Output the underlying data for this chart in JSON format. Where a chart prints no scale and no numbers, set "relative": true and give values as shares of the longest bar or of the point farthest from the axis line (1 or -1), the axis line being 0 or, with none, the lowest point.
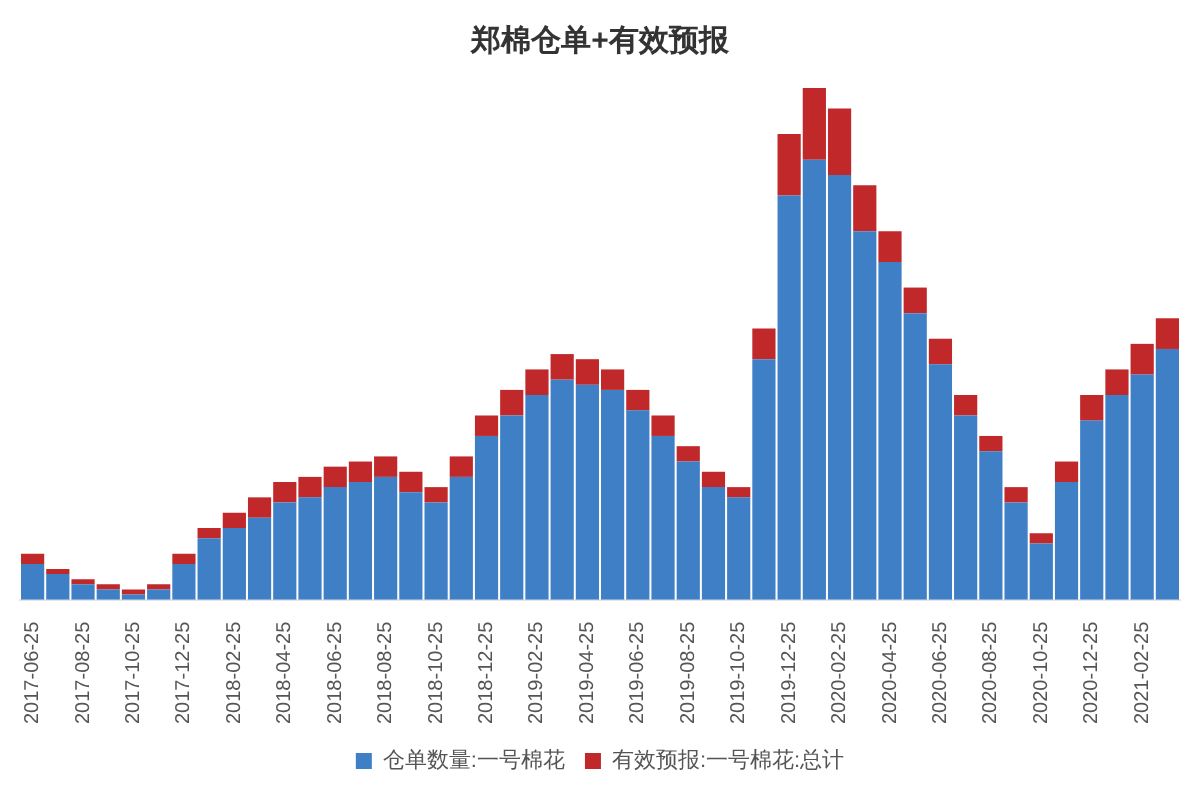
{
  "chart_data": {
    "type": "bar",
    "title": "郑棉仓单+有效预报",
    "stacked": true,
    "relative": true,
    "legend": "bottom",
    "grid": false,
    "categories": [
      "2017-06-25",
      null,
      "2017-08-25",
      null,
      "2017-10-25",
      null,
      "2017-12-25",
      null,
      "2018-02-25",
      null,
      "2018-04-25",
      null,
      "2018-06-25",
      null,
      "2018-08-25",
      null,
      "2018-10-25",
      null,
      "2018-12-25",
      null,
      "2019-02-25",
      null,
      "2019-04-25",
      null,
      "2019-06-25",
      null,
      "2019-08-25",
      null,
      "2019-10-25",
      null,
      "2019-12-25",
      null,
      "2020-02-25",
      null,
      "2020-04-25",
      null,
      "2020-06-25",
      null,
      "2020-08-25",
      null,
      "2020-10-25",
      null,
      "2020-12-25",
      null,
      "2021-02-25",
      null
    ],
    "series": [
      {
        "name": "仓单数量:一号棉花",
        "color": "#3f7fc6",
        "values": [
          0.07,
          0.05,
          0.03,
          0.02,
          0.01,
          0.02,
          0.07,
          0.12,
          0.14,
          0.16,
          0.19,
          0.2,
          0.22,
          0.23,
          0.24,
          0.21,
          0.19,
          0.24,
          0.32,
          0.36,
          0.4,
          0.43,
          0.42,
          0.41,
          0.37,
          0.32,
          0.27,
          0.22,
          0.2,
          0.47,
          0.79,
          0.86,
          0.83,
          0.72,
          0.66,
          0.56,
          0.46,
          0.36,
          0.29,
          0.19,
          0.11,
          0.23,
          0.35,
          0.4,
          0.44,
          0.49
        ]
      },
      {
        "name": "有效预报:一号棉花:总计",
        "color": "#c0282a",
        "values": [
          0.02,
          0.01,
          0.01,
          0.01,
          0.01,
          0.01,
          0.02,
          0.02,
          0.03,
          0.04,
          0.04,
          0.04,
          0.04,
          0.04,
          0.04,
          0.04,
          0.03,
          0.04,
          0.04,
          0.05,
          0.05,
          0.05,
          0.05,
          0.04,
          0.04,
          0.04,
          0.03,
          0.03,
          0.02,
          0.06,
          0.12,
          0.14,
          0.13,
          0.09,
          0.06,
          0.05,
          0.05,
          0.04,
          0.03,
          0.03,
          0.02,
          0.04,
          0.05,
          0.05,
          0.06,
          0.06
        ]
      }
    ]
  }
}
